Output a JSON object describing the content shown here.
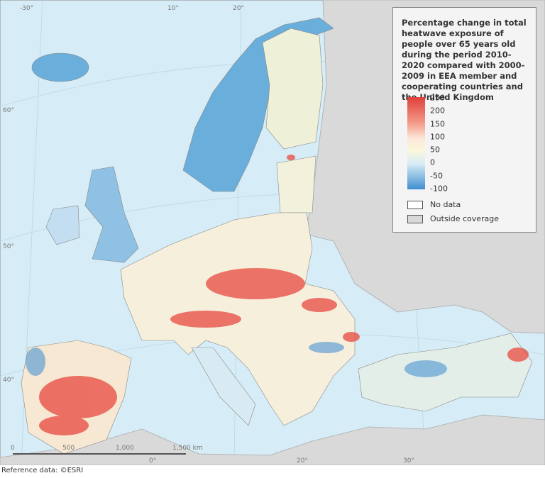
{
  "legend": {
    "title": "Percentage change in total heatwave exposure of people over 65 years old during the period 2010-2020 compared with 2000-2009 in EEA member and cooperating countries and the United Kingdom",
    "scale": [
      250,
      200,
      150,
      100,
      50,
      0,
      -50,
      -100
    ],
    "no_data": "No data",
    "outside_coverage": "Outside coverage"
  },
  "scale_bar": {
    "labels": [
      "0",
      "500",
      "1,000",
      "1,500 km"
    ]
  },
  "graticule": {
    "labels": [
      "-30°",
      "10°",
      "20°",
      "60°",
      "50°",
      "40°",
      "0°",
      "20°",
      "30°"
    ]
  },
  "footer": "Reference data: ©ESRI"
}
